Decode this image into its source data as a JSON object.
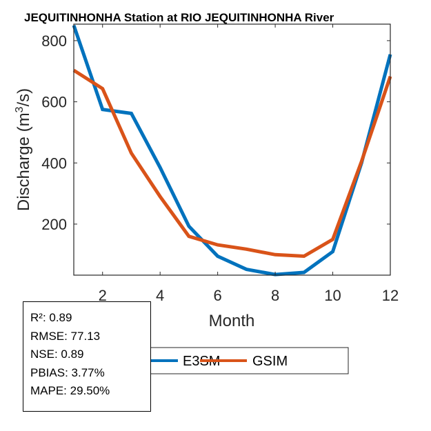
{
  "chart_data": {
    "type": "line",
    "title": "JEQUITINHONHA  Station at  RIO JEQUITINHONHA  River",
    "xlabel": "Month",
    "ylabel": "Discharge (m³/s)",
    "xlim": [
      1,
      12
    ],
    "ylim": [
      33,
      854
    ],
    "xticks": [
      2,
      4,
      6,
      8,
      10,
      12
    ],
    "yticks": [
      200,
      400,
      600,
      800
    ],
    "x": [
      1,
      2,
      3,
      4,
      5,
      6,
      7,
      8,
      9,
      10,
      11,
      12
    ],
    "series": [
      {
        "name": "E3SM",
        "color": "#0072BD",
        "values": [
          850,
          575,
          562,
          385,
          193,
          95,
          52,
          35,
          42,
          110,
          400,
          755
        ]
      },
      {
        "name": "GSIM",
        "color": "#D95319",
        "values": [
          703,
          643,
          432,
          290,
          160,
          132,
          118,
          100,
          95,
          150,
          405,
          683
        ]
      }
    ],
    "legend_position": "bottom-center",
    "grid": false
  },
  "stats": [
    "R²: 0.89",
    "RMSE: 77.13",
    "NSE: 0.89",
    "PBIAS: 3.77%",
    "MAPE: 29.50%"
  ]
}
